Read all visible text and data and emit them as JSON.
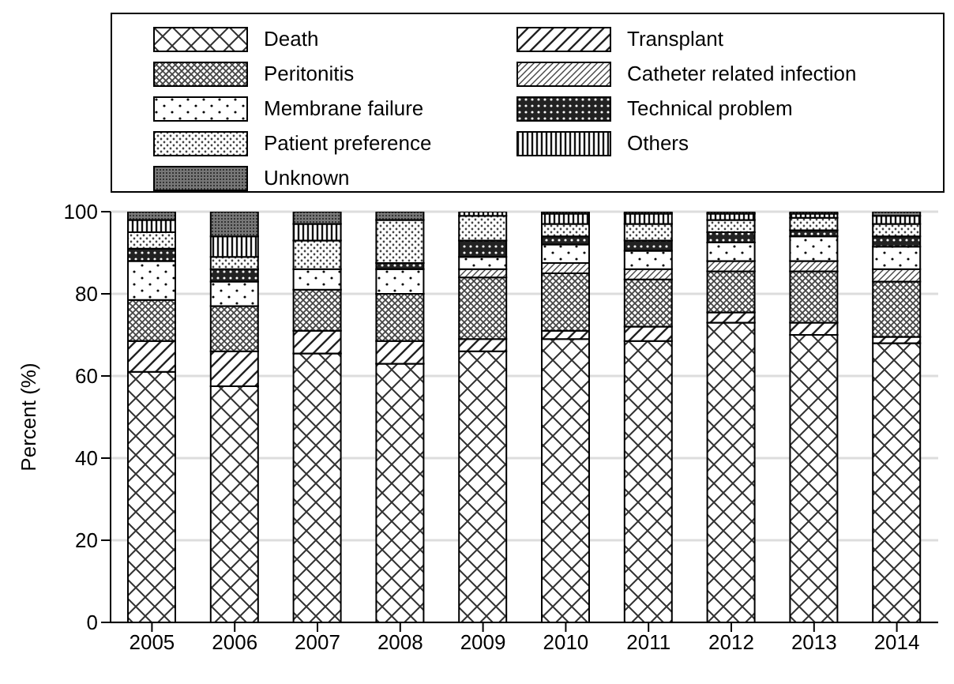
{
  "chart_data": {
    "type": "bar",
    "stacked": true,
    "ylabel": "Percent (%)",
    "categories": [
      "2005",
      "2006",
      "2007",
      "2008",
      "2009",
      "2010",
      "2011",
      "2012",
      "2013",
      "2014"
    ],
    "series": [
      {
        "name": "Death",
        "values": [
          61,
          57.5,
          65.5,
          63,
          66,
          69,
          68.5,
          73,
          70,
          68
        ]
      },
      {
        "name": "Transplant",
        "values": [
          7.5,
          8.5,
          5.5,
          5.5,
          3,
          2,
          3.5,
          2.5,
          3,
          1.5
        ]
      },
      {
        "name": "Peritonitis",
        "values": [
          10,
          11,
          10,
          11.5,
          15,
          14,
          11.5,
          10,
          12.5,
          13.5
        ]
      },
      {
        "name": "Catheter related infection",
        "values": [
          0,
          0,
          0,
          0,
          2,
          2.5,
          2.5,
          2.5,
          2.5,
          3
        ]
      },
      {
        "name": "Membrane failure",
        "values": [
          9.5,
          6,
          5,
          6,
          3,
          4.5,
          4.5,
          4.5,
          6,
          5.5
        ]
      },
      {
        "name": "Technical problem",
        "values": [
          3,
          3,
          0,
          1.5,
          4,
          2,
          2.5,
          2.5,
          1.5,
          2.5
        ]
      },
      {
        "name": "Patient preference",
        "values": [
          4,
          3,
          7,
          10.5,
          6,
          3,
          4,
          3,
          3,
          3
        ]
      },
      {
        "name": "Others",
        "values": [
          3,
          5,
          4,
          0,
          1,
          2.5,
          2.5,
          1.5,
          1,
          2
        ]
      },
      {
        "name": "Unknown",
        "values": [
          2,
          6,
          3,
          2,
          0,
          0.5,
          0.5,
          0.5,
          0.5,
          1
        ]
      }
    ],
    "ylim": [
      0,
      100
    ],
    "yticks": [
      0,
      20,
      40,
      60,
      80,
      100
    ],
    "grid": "y",
    "legend": "top"
  }
}
